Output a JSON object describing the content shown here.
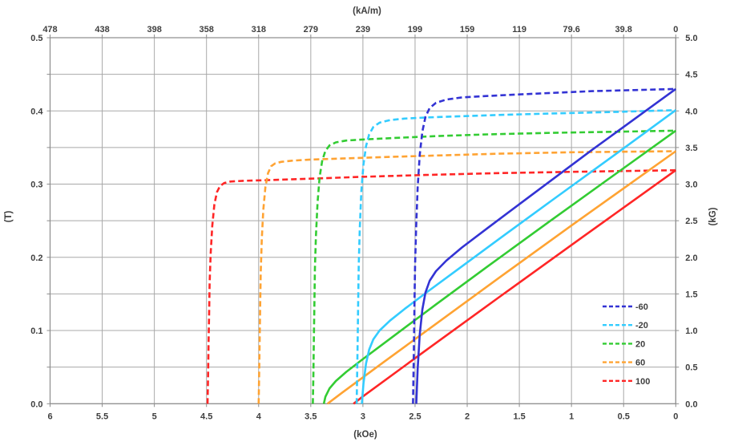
{
  "chart_data": {
    "type": "line",
    "title": "",
    "grid": {
      "color": "#a8a8a8",
      "border_color": "#8c8c8c",
      "x_step_kOe": 0.5,
      "y_step_T": 0.05
    },
    "text_color": "#3f3f3f",
    "axes": {
      "top": {
        "label": "(kA/m)",
        "tick_labels": [
          "478",
          "438",
          "398",
          "358",
          "318",
          "279",
          "239",
          "199",
          "159",
          "119",
          "79.6",
          "39.8",
          "0"
        ]
      },
      "bottom": {
        "label": "(kOe)",
        "tick_labels": [
          "6",
          "5.5",
          "5",
          "4.5",
          "4",
          "3.5",
          "3",
          "2.5",
          "2",
          "1.5",
          "1",
          "0.5",
          "0"
        ],
        "min": 0,
        "max": 6,
        "direction": "values-decrease-to-right"
      },
      "left": {
        "label": "(T)",
        "tick_labels": [
          "0.5",
          "0.4",
          "0.3",
          "0.2",
          "0.1",
          "0.0"
        ],
        "min": 0,
        "max": 0.5
      },
      "right": {
        "label": "(kG)",
        "tick_labels": [
          "5.0",
          "4.5",
          "4.0",
          "3.5",
          "3.0",
          "2.5",
          "2.0",
          "1.5",
          "1.0",
          "0.5",
          "0.0"
        ]
      }
    },
    "legend": {
      "position": "bottom-right",
      "entries": [
        "-60",
        "-20",
        "20",
        "60",
        "100"
      ]
    },
    "series": [
      {
        "name": "-60",
        "color": "#3333d4",
        "intrinsic_JH_dashed": [
          [
            2.52,
            0
          ],
          [
            2.515,
            0.04
          ],
          [
            2.51,
            0.09
          ],
          [
            2.505,
            0.14
          ],
          [
            2.5,
            0.19
          ],
          [
            2.49,
            0.24
          ],
          [
            2.475,
            0.295
          ],
          [
            2.455,
            0.34
          ],
          [
            2.43,
            0.372
          ],
          [
            2.4,
            0.392
          ],
          [
            2.36,
            0.404
          ],
          [
            2.3,
            0.411
          ],
          [
            2.2,
            0.4155
          ],
          [
            2.05,
            0.4185
          ],
          [
            1.8,
            0.4205
          ],
          [
            1.5,
            0.4225
          ],
          [
            1.2,
            0.4245
          ],
          [
            0.8,
            0.427
          ],
          [
            0.4,
            0.4285
          ],
          [
            0,
            0.43
          ]
        ],
        "normal_BH_solid": [
          [
            2.488,
            0
          ],
          [
            2.475,
            0.0475
          ],
          [
            2.455,
            0.0945
          ],
          [
            2.43,
            0.129
          ],
          [
            2.4,
            0.152
          ],
          [
            2.36,
            0.168
          ],
          [
            2.3,
            0.181
          ],
          [
            2.2,
            0.1955
          ],
          [
            2.05,
            0.2135
          ],
          [
            1.8,
            0.2405
          ],
          [
            1.5,
            0.2725
          ],
          [
            1.2,
            0.3045
          ],
          [
            0.8,
            0.347
          ],
          [
            0.4,
            0.3885
          ],
          [
            0,
            0.43
          ]
        ]
      },
      {
        "name": "-20",
        "color": "#33ccff",
        "intrinsic_JH_dashed": [
          [
            3.06,
            0
          ],
          [
            3.055,
            0.04
          ],
          [
            3.05,
            0.09
          ],
          [
            3.045,
            0.14
          ],
          [
            3.04,
            0.19
          ],
          [
            3.03,
            0.24
          ],
          [
            3.015,
            0.29
          ],
          [
            2.995,
            0.327
          ],
          [
            2.97,
            0.352
          ],
          [
            2.94,
            0.368
          ],
          [
            2.9,
            0.378
          ],
          [
            2.84,
            0.384
          ],
          [
            2.74,
            0.3875
          ],
          [
            2.6,
            0.3895
          ],
          [
            2.4,
            0.391
          ],
          [
            2.1,
            0.3925
          ],
          [
            1.7,
            0.3945
          ],
          [
            1.2,
            0.3965
          ],
          [
            0.6,
            0.3985
          ],
          [
            0,
            0.401
          ]
        ],
        "normal_BH_solid": [
          [
            3.01,
            0
          ],
          [
            2.995,
            0.0275
          ],
          [
            2.97,
            0.055
          ],
          [
            2.94,
            0.074
          ],
          [
            2.9,
            0.088
          ],
          [
            2.84,
            0.1
          ],
          [
            2.74,
            0.1135
          ],
          [
            2.6,
            0.1295
          ],
          [
            2.4,
            0.151
          ],
          [
            2.1,
            0.1825
          ],
          [
            1.7,
            0.2245
          ],
          [
            1.2,
            0.2765
          ],
          [
            0.6,
            0.3385
          ],
          [
            0,
            0.401
          ]
        ]
      },
      {
        "name": "20",
        "color": "#33cc33",
        "intrinsic_JH_dashed": [
          [
            3.48,
            0
          ],
          [
            3.475,
            0.04
          ],
          [
            3.47,
            0.09
          ],
          [
            3.465,
            0.14
          ],
          [
            3.46,
            0.185
          ],
          [
            3.45,
            0.23
          ],
          [
            3.435,
            0.275
          ],
          [
            3.415,
            0.31
          ],
          [
            3.39,
            0.332
          ],
          [
            3.36,
            0.3455
          ],
          [
            3.32,
            0.353
          ],
          [
            3.26,
            0.357
          ],
          [
            3.16,
            0.3595
          ],
          [
            3.0,
            0.361
          ],
          [
            2.7,
            0.363
          ],
          [
            2.3,
            0.3655
          ],
          [
            1.8,
            0.368
          ],
          [
            1.2,
            0.37
          ],
          [
            0.6,
            0.3715
          ],
          [
            0,
            0.373
          ]
        ],
        "normal_BH_solid": [
          [
            3.375,
            0
          ],
          [
            3.36,
            0.0095
          ],
          [
            3.32,
            0.021
          ],
          [
            3.26,
            0.031
          ],
          [
            3.16,
            0.0435
          ],
          [
            3.0,
            0.061
          ],
          [
            2.7,
            0.093
          ],
          [
            2.3,
            0.1355
          ],
          [
            1.8,
            0.188
          ],
          [
            1.2,
            0.25
          ],
          [
            0.6,
            0.3115
          ],
          [
            0,
            0.373
          ]
        ]
      },
      {
        "name": "60",
        "color": "#ffa333",
        "intrinsic_JH_dashed": [
          [
            4.0,
            0
          ],
          [
            3.995,
            0.04
          ],
          [
            3.99,
            0.09
          ],
          [
            3.985,
            0.135
          ],
          [
            3.98,
            0.18
          ],
          [
            3.97,
            0.225
          ],
          [
            3.955,
            0.265
          ],
          [
            3.935,
            0.296
          ],
          [
            3.91,
            0.315
          ],
          [
            3.88,
            0.3245
          ],
          [
            3.84,
            0.3285
          ],
          [
            3.78,
            0.3305
          ],
          [
            3.68,
            0.332
          ],
          [
            3.5,
            0.3335
          ],
          [
            3.2,
            0.335
          ],
          [
            2.8,
            0.337
          ],
          [
            2.3,
            0.339
          ],
          [
            1.7,
            0.3415
          ],
          [
            1.0,
            0.3435
          ],
          [
            0,
            0.345
          ]
        ],
        "normal_BH_solid": [
          [
            3.34,
            0
          ],
          [
            3.2,
            0.015
          ],
          [
            2.8,
            0.057
          ],
          [
            2.3,
            0.109
          ],
          [
            1.7,
            0.1715
          ],
          [
            1.0,
            0.2435
          ],
          [
            0,
            0.345
          ]
        ]
      },
      {
        "name": "100",
        "color": "#ff2626",
        "intrinsic_JH_dashed": [
          [
            4.49,
            0
          ],
          [
            4.485,
            0.04
          ],
          [
            4.48,
            0.085
          ],
          [
            4.475,
            0.125
          ],
          [
            4.47,
            0.165
          ],
          [
            4.46,
            0.205
          ],
          [
            4.445,
            0.243
          ],
          [
            4.425,
            0.272
          ],
          [
            4.4,
            0.289
          ],
          [
            4.37,
            0.2975
          ],
          [
            4.33,
            0.3015
          ],
          [
            4.27,
            0.3035
          ],
          [
            4.15,
            0.3045
          ],
          [
            3.9,
            0.3055
          ],
          [
            3.5,
            0.3075
          ],
          [
            3.0,
            0.31
          ],
          [
            2.4,
            0.3125
          ],
          [
            1.7,
            0.315
          ],
          [
            0.9,
            0.317
          ],
          [
            0,
            0.319
          ]
        ],
        "normal_BH_solid": [
          [
            3.09,
            0
          ],
          [
            3.0,
            0.01
          ],
          [
            2.4,
            0.0725
          ],
          [
            1.7,
            0.145
          ],
          [
            0.9,
            0.227
          ],
          [
            0,
            0.319
          ]
        ]
      }
    ]
  }
}
